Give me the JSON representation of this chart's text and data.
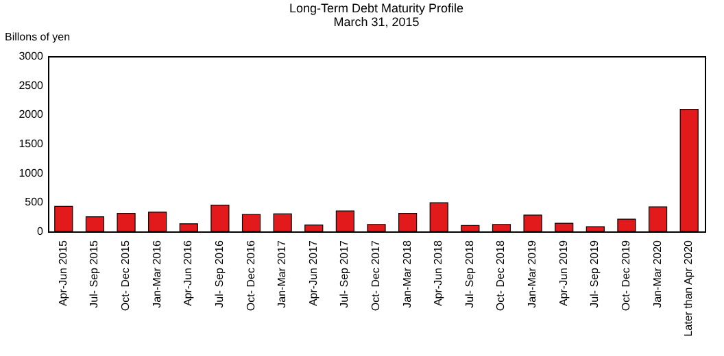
{
  "chart_data": {
    "type": "bar",
    "title": "Long-Term Debt Maturity Profile",
    "subtitle": "March 31, 2015",
    "ylabel": "Billons of yen",
    "categories": [
      "Apr-Jun 2015",
      "Jul- Sep 2015",
      "Oct- Dec 2015",
      "Jan-Mar 2016",
      "Apr-Jun 2016",
      "Jul- Sep 2016",
      "Oct- Dec 2016",
      "Jan-Mar 2017",
      "Apr-Jun 2017",
      "Jul- Sep 2017",
      "Oct- Dec 2017",
      "Jan-Mar 2018",
      "Apr-Jun 2018",
      "Jul- Sep 2018",
      "Oct- Dec 2018",
      "Jan-Mar 2019",
      "Apr-Jun 2019",
      "Jul- Sep 2019",
      "Oct- Dec 2019",
      "Jan-Mar 2020",
      "Later than Apr 2020"
    ],
    "values": [
      430,
      250,
      310,
      330,
      130,
      450,
      290,
      300,
      110,
      350,
      120,
      310,
      490,
      100,
      120,
      280,
      140,
      80,
      210,
      420,
      2090
    ],
    "color": "#e31a1c",
    "ylim": [
      0,
      3000
    ],
    "yticks": [
      0,
      500,
      1000,
      1500,
      2000,
      2500,
      3000
    ],
    "grid": false
  }
}
